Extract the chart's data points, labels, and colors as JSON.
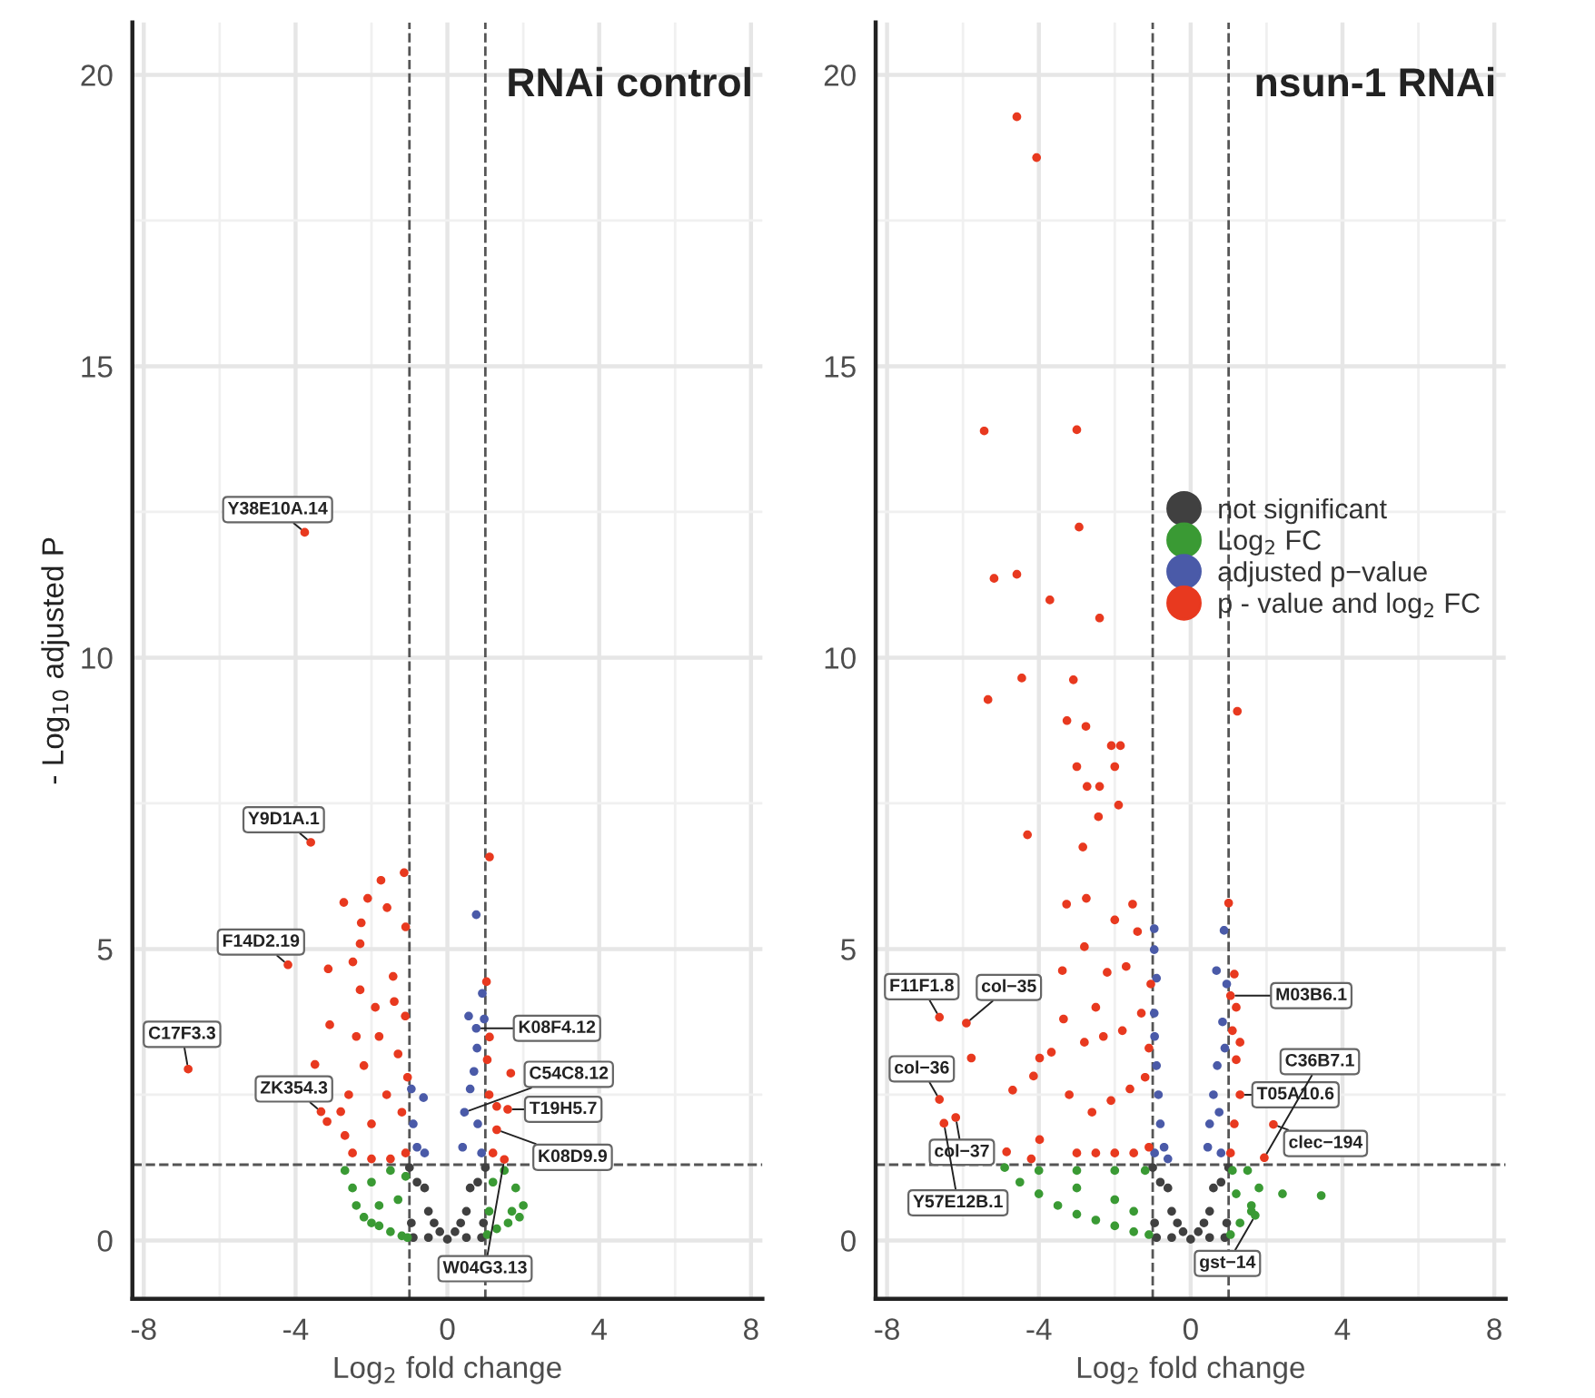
{
  "chart_data": [
    {
      "type": "scatter",
      "title": "RNAi control",
      "xlabel": "Log$_{2}$ fold change",
      "ylabel": "- Log$_{10}$ adjusted P",
      "xlim": [
        -8.3,
        8.3
      ],
      "ylim": [
        -1.0,
        20.9
      ],
      "xticks": [
        -8,
        -4,
        0,
        4,
        8
      ],
      "yticks": [
        0,
        5,
        10,
        15,
        20
      ],
      "grid": true,
      "legend": false,
      "marker": "circle",
      "ref_lines": [
        {
          "axis": "x",
          "value": -1,
          "color": "#555555",
          "line_style": "dashed"
        },
        {
          "axis": "x",
          "value": 1,
          "color": "#555555",
          "line_style": "dashed"
        },
        {
          "axis": "y",
          "value": 1.3,
          "color": "#555555",
          "line_style": "dashed"
        }
      ],
      "series": [
        {
          "color": "#404040",
          "x": [
            -1,
            -0.8,
            -0.5,
            -0.2,
            0,
            0.2,
            0.5,
            0.8,
            1,
            -0.95,
            -0.9,
            0.95,
            0.9,
            -0.5,
            0.5,
            -0.6,
            0.6,
            -0.35,
            0.35
          ],
          "values": [
            1.25,
            1.0,
            0.5,
            0.15,
            0.02,
            0.15,
            0.5,
            1.0,
            1.25,
            0.3,
            0.05,
            0.3,
            0.05,
            0.05,
            0.05,
            0.9,
            0.9,
            0.3,
            0.3
          ]
        },
        {
          "color": "#3a9a34",
          "x": [
            -2.7,
            -2.5,
            -2.4,
            -2.2,
            -2.0,
            -1.8,
            -1.5,
            -1.2,
            -1.05,
            -1.5,
            -2.0,
            -1.3,
            -1.8,
            -1.1,
            1.05,
            1.3,
            1.6,
            1.9,
            2.0,
            1.8,
            1.5,
            1.2,
            1.1,
            1.7
          ],
          "values": [
            1.2,
            0.9,
            0.6,
            0.4,
            0.3,
            0.25,
            0.15,
            0.08,
            0.05,
            1.2,
            1.0,
            0.7,
            0.6,
            1.1,
            0.1,
            0.2,
            0.3,
            0.4,
            0.6,
            0.9,
            1.2,
            1.0,
            0.5,
            0.5
          ]
        },
        {
          "color": "#4a5aa8",
          "x": [
            -0.63,
            -0.9,
            -0.8,
            -0.6,
            -0.95,
            0.76,
            0.92,
            0.56,
            0.76,
            0.97,
            0.78,
            0.6,
            0.45,
            0.8,
            0.4,
            0.9,
            0.7
          ],
          "values": [
            2.45,
            2.0,
            1.6,
            1.5,
            2.6,
            5.59,
            4.24,
            3.85,
            3.64,
            3.8,
            3.3,
            2.6,
            2.2,
            2.0,
            1.6,
            1.5,
            2.9
          ]
        },
        {
          "color": "#e8391f",
          "x": [
            -3.76,
            -3.6,
            -1.14,
            -1.75,
            -2.73,
            -2.1,
            -1.59,
            -2.27,
            -1.1,
            -2.3,
            -4.2,
            -3.14,
            -1.43,
            -2.49,
            -3.1,
            -1.11,
            -6.83,
            -3.49,
            -3.33,
            -2.81,
            -3.17,
            -2.5,
            -2.0,
            -1.5,
            -1.1,
            -2.6,
            -2.2,
            -1.8,
            -1.3,
            -2.4,
            -1.6,
            -1.2,
            -2.0,
            -2.7,
            -1.05,
            -1.4,
            -2.3,
            -1.9,
            1.11,
            1.03,
            1.11,
            1.67,
            1.59,
            1.3,
            1.5,
            1.2,
            1.1,
            1.3,
            1.05
          ],
          "values": [
            12.15,
            6.83,
            6.31,
            6.18,
            5.8,
            5.87,
            5.71,
            5.45,
            5.38,
            5.09,
            4.73,
            4.66,
            4.53,
            4.78,
            3.7,
            3.85,
            2.94,
            3.02,
            2.21,
            2.21,
            2.04,
            1.5,
            1.4,
            1.4,
            1.5,
            2.5,
            3.0,
            3.5,
            3.2,
            3.5,
            2.5,
            2.2,
            2.0,
            1.8,
            2.8,
            4.1,
            4.3,
            4.0,
            6.58,
            4.44,
            3.49,
            2.87,
            2.25,
            1.9,
            1.39,
            1.5,
            2.5,
            2.3,
            3.1
          ]
        }
      ],
      "annotations": [
        {
          "text": "Y38E10A.14",
          "x": -3.76,
          "y": 12.15
        },
        {
          "text": "Y9D1A.1",
          "x": -3.6,
          "y": 6.83
        },
        {
          "text": "F14D2.19",
          "x": -4.2,
          "y": 4.73
        },
        {
          "text": "C17F3.3",
          "x": -6.83,
          "y": 2.94
        },
        {
          "text": "ZK354.3",
          "x": -3.33,
          "y": 2.21
        },
        {
          "text": "K08F4.12",
          "x": 0.76,
          "y": 3.64
        },
        {
          "text": "T19H5.7",
          "x": 1.59,
          "y": 2.25
        },
        {
          "text": "C54C8.12",
          "x": 0.45,
          "y": 2.2
        },
        {
          "text": "K08D9.9",
          "x": 1.3,
          "y": 1.9
        },
        {
          "text": "W04G3.13",
          "x": 1.5,
          "y": 1.39
        }
      ]
    },
    {
      "type": "scatter",
      "title": "nsun-1 RNAi",
      "xlabel": "Log$_{2}$ fold change",
      "xlim": [
        -8.3,
        8.3
      ],
      "ylim": [
        -1.0,
        20.9
      ],
      "xticks": [
        -8,
        -4,
        0,
        4,
        8
      ],
      "yticks": [
        0,
        5,
        10,
        15,
        20
      ],
      "grid": true,
      "legend": "right",
      "marker": "circle",
      "ref_lines": [
        {
          "axis": "x",
          "value": -1,
          "color": "#555555",
          "line_style": "dashed"
        },
        {
          "axis": "x",
          "value": 1,
          "color": "#555555",
          "line_style": "dashed"
        },
        {
          "axis": "y",
          "value": 1.3,
          "color": "#555555",
          "line_style": "dashed"
        }
      ],
      "series": [
        {
          "name": "not significant",
          "color": "#404040",
          "x": [
            -1,
            -0.8,
            -0.5,
            -0.2,
            0,
            0.2,
            0.5,
            0.8,
            1,
            -0.95,
            -0.9,
            0.95,
            0.9,
            -0.5,
            0.5,
            -0.6,
            0.6,
            -0.35,
            0.35
          ],
          "values": [
            1.25,
            1.0,
            0.5,
            0.15,
            0.02,
            0.15,
            0.5,
            1.0,
            1.25,
            0.3,
            0.05,
            0.3,
            0.05,
            0.05,
            0.05,
            0.9,
            0.9,
            0.3,
            0.3
          ]
        },
        {
          "name": "Log$_{2}$ FC",
          "color": "#3a9a34",
          "x": [
            -4.9,
            -4.5,
            -4.0,
            -3.5,
            -3.0,
            -2.5,
            -2.0,
            -1.5,
            -1.1,
            -4.0,
            -3.0,
            -2.0,
            -1.2,
            -3.0,
            -2.0,
            -1.5,
            1.05,
            1.3,
            1.6,
            1.8,
            1.5,
            1.2,
            1.1,
            1.7,
            2.42,
            3.44,
            1.6
          ],
          "values": [
            1.25,
            1.0,
            0.8,
            0.6,
            0.45,
            0.35,
            0.25,
            0.15,
            0.1,
            1.2,
            1.2,
            1.2,
            1.2,
            0.9,
            0.7,
            0.5,
            0.1,
            0.3,
            0.5,
            0.9,
            1.2,
            0.8,
            1.2,
            0.43,
            0.8,
            0.77,
            0.6
          ]
        },
        {
          "name": "adjusted p−value",
          "color": "#4a5aa8",
          "x": [
            -0.96,
            -0.96,
            -0.96,
            -0.9,
            -0.85,
            -0.8,
            -0.7,
            -0.95,
            -0.6,
            -0.9,
            -0.95,
            0.88,
            0.68,
            0.84,
            0.7,
            0.6,
            0.5,
            0.45,
            0.8,
            0.95,
            0.9,
            0.75
          ],
          "values": [
            5.35,
            4.99,
            3.9,
            3.0,
            2.5,
            2.0,
            1.6,
            1.5,
            1.4,
            4.5,
            3.5,
            5.32,
            4.63,
            3.75,
            3.0,
            2.5,
            2.0,
            1.6,
            1.5,
            4.4,
            3.3,
            2.2
          ]
        },
        {
          "name": "p - value and log$_{2}$ FC",
          "color": "#e8391f",
          "x": [
            -4.58,
            -4.06,
            -5.44,
            -3.0,
            -2.94,
            -5.18,
            -4.58,
            -3.71,
            -2.4,
            -4.45,
            -3.09,
            -5.34,
            1.23,
            -3.26,
            -2.76,
            -2.09,
            -1.85,
            -3.0,
            -2.0,
            -2.73,
            -2.4,
            -4.3,
            -2.84,
            -1.9,
            -2.43,
            -3.27,
            -2.75,
            -1.53,
            -3.38,
            -2.8,
            1.0,
            1.15,
            -6.62,
            -5.91,
            -5.78,
            -6.62,
            -6.5,
            -6.19,
            -4.69,
            -3.98,
            -3.67,
            -4.14,
            -3.35,
            -4.85,
            -3.98,
            -4.2,
            -3.0,
            -2.5,
            -2.0,
            -1.5,
            -1.1,
            -3.2,
            -2.6,
            -2.1,
            -1.6,
            -1.2,
            -2.8,
            -2.3,
            -1.8,
            -1.3,
            -1.05,
            -2.2,
            -1.7,
            -1.4,
            -2.0,
            -1.1,
            -2.5,
            1.05,
            1.15,
            1.3,
            1.2,
            1.1,
            1.3,
            1.05,
            1.2,
            2.18,
            1.94
          ],
          "values": [
            19.28,
            18.58,
            13.89,
            13.91,
            12.24,
            11.36,
            11.43,
            10.99,
            10.68,
            9.65,
            9.62,
            9.28,
            9.08,
            8.92,
            8.82,
            8.49,
            8.49,
            8.13,
            8.13,
            7.79,
            7.79,
            6.96,
            6.75,
            7.47,
            7.27,
            5.77,
            5.87,
            5.77,
            4.63,
            5.04,
            5.79,
            4.57,
            3.83,
            3.73,
            3.13,
            2.42,
            2.01,
            2.11,
            2.58,
            3.13,
            3.23,
            2.82,
            3.8,
            1.52,
            1.73,
            1.4,
            1.5,
            1.5,
            1.5,
            1.5,
            1.6,
            2.5,
            2.2,
            2.4,
            2.6,
            2.8,
            3.4,
            3.5,
            3.6,
            3.9,
            4.4,
            4.6,
            4.7,
            5.3,
            5.5,
            3.3,
            4.0,
            1.5,
            2.0,
            2.5,
            3.1,
            3.6,
            3.4,
            4.2,
            4.0,
            1.99,
            1.42
          ]
        }
      ],
      "annotations": [
        {
          "text": "F11F1.8",
          "x": -6.62,
          "y": 3.83
        },
        {
          "text": "col−35",
          "x": -5.91,
          "y": 3.73
        },
        {
          "text": "col−36",
          "x": -6.62,
          "y": 2.42
        },
        {
          "text": "col−37",
          "x": -6.19,
          "y": 2.11
        },
        {
          "text": "Y57E12B.1",
          "x": -6.5,
          "y": 2.01
        },
        {
          "text": "M03B6.1",
          "x": 1.05,
          "y": 4.2
        },
        {
          "text": "T05A10.6",
          "x": 1.3,
          "y": 2.5
        },
        {
          "text": "clec−194",
          "x": 2.18,
          "y": 1.99
        },
        {
          "text": "C36B7.1",
          "x": 1.94,
          "y": 1.42
        },
        {
          "text": "gst−14",
          "x": 1.7,
          "y": 0.43
        }
      ]
    }
  ]
}
